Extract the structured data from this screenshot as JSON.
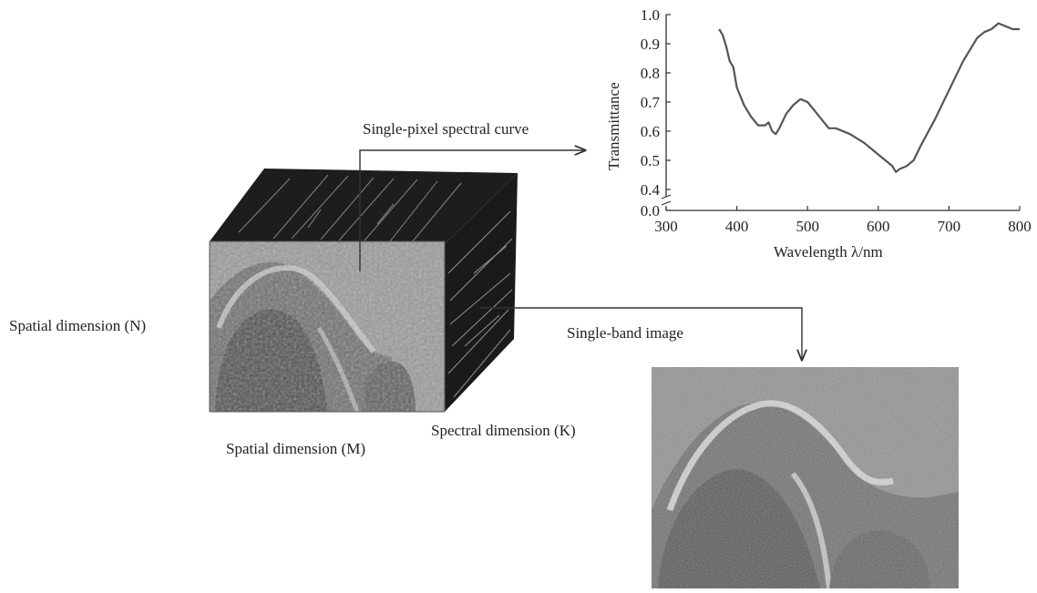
{
  "labels": {
    "spatial_n": "Spatial dimension (N)",
    "spatial_m": "Spatial dimension (M)",
    "spectral_k": "Spectral dimension (K)",
    "single_pixel": "Single-pixel spectral curve",
    "single_band": "Single-band image"
  },
  "chart_data": {
    "type": "line",
    "title": "",
    "xlabel": "Wavelength λ/nm",
    "ylabel": "Transmittance",
    "xlim": [
      300,
      800
    ],
    "ylim": [
      0.0,
      1.0
    ],
    "axis_break": [
      0.0,
      0.4
    ],
    "x_ticks": [
      300,
      400,
      500,
      600,
      700,
      800
    ],
    "y_ticks": [
      0.0,
      0.4,
      0.5,
      0.6,
      0.7,
      0.8,
      0.9,
      1.0
    ],
    "series": [
      {
        "x": [
          375,
          380,
          385,
          390,
          395,
          400,
          405,
          410,
          420,
          430,
          440,
          445,
          450,
          455,
          460,
          470,
          480,
          490,
          500,
          510,
          520,
          530,
          540,
          560,
          580,
          600,
          610,
          620,
          625,
          630,
          640,
          650,
          660,
          680,
          700,
          720,
          740,
          750,
          760,
          770,
          780,
          790,
          800
        ],
        "y": [
          0.95,
          0.93,
          0.89,
          0.84,
          0.82,
          0.75,
          0.72,
          0.69,
          0.65,
          0.62,
          0.62,
          0.63,
          0.6,
          0.59,
          0.61,
          0.66,
          0.69,
          0.71,
          0.7,
          0.67,
          0.64,
          0.61,
          0.61,
          0.59,
          0.56,
          0.52,
          0.5,
          0.48,
          0.46,
          0.47,
          0.48,
          0.5,
          0.55,
          0.64,
          0.74,
          0.84,
          0.92,
          0.94,
          0.95,
          0.97,
          0.96,
          0.95,
          0.95
        ]
      }
    ]
  }
}
